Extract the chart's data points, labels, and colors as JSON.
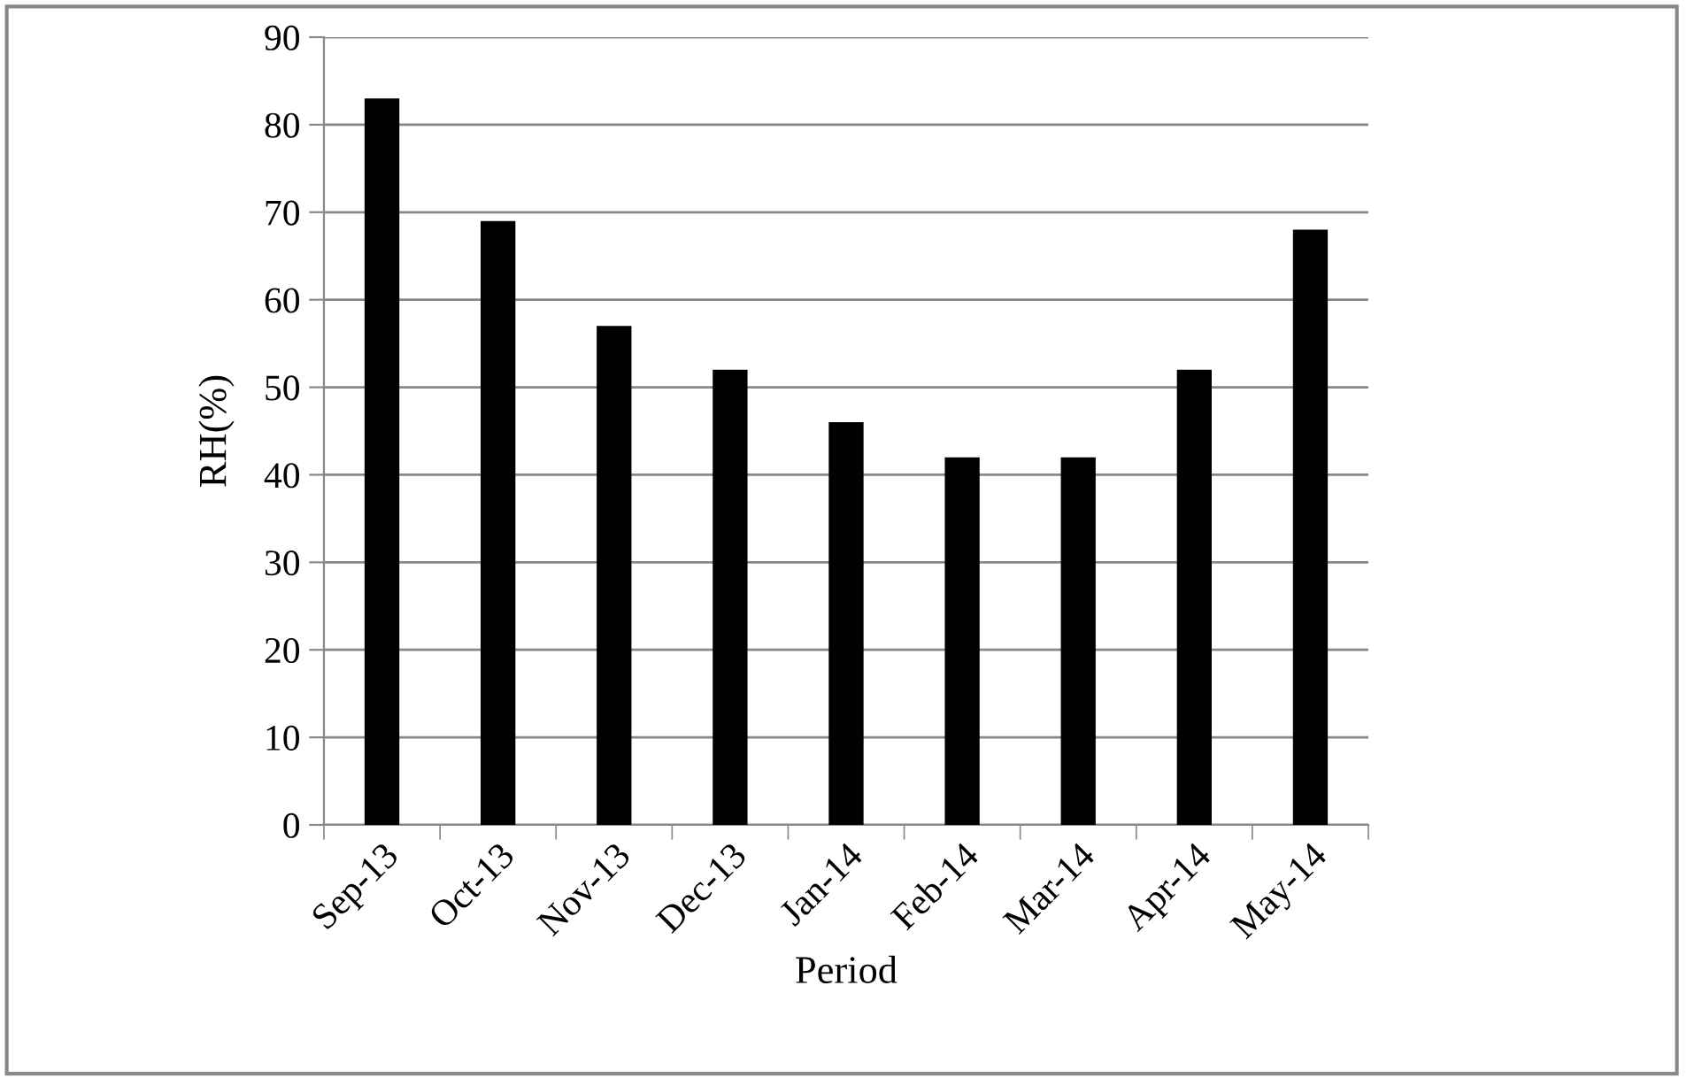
{
  "chart_data": {
    "type": "bar",
    "xlabel": "Period",
    "ylabel": "RH(%)",
    "categories": [
      "Sep-13",
      "Oct-13",
      "Nov-13",
      "Dec-13",
      "Jan-14",
      "Feb-14",
      "Mar-14",
      "Apr-14",
      "May-14"
    ],
    "values": [
      83,
      69,
      57,
      52,
      46,
      42,
      42,
      52,
      68
    ],
    "color": "#000000",
    "ylim": [
      0,
      90
    ],
    "yticks": [
      0,
      10,
      20,
      30,
      40,
      50,
      60,
      70,
      80,
      90
    ],
    "grid": "y"
  }
}
